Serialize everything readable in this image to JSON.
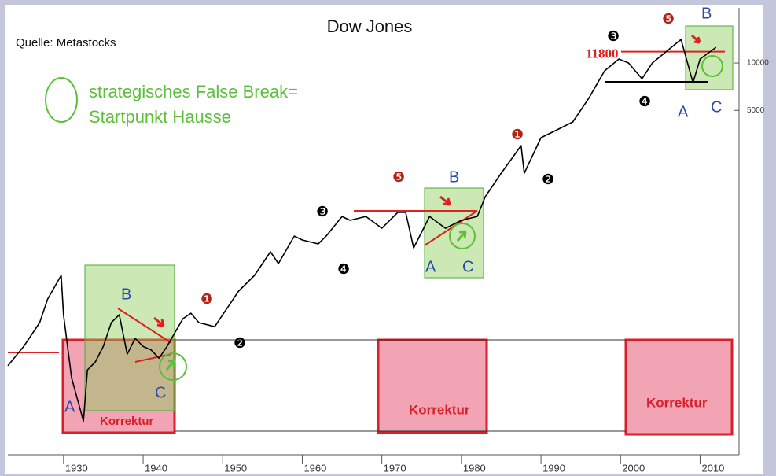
{
  "chart_data": {
    "type": "line",
    "title": "Dow Jones",
    "x": [
      1923,
      1925,
      1927,
      1928,
      1929.7,
      1930,
      1931,
      1932.5,
      1933,
      1934,
      1935,
      1936,
      1937,
      1938,
      1939,
      1940,
      1941,
      1942,
      1943,
      1945,
      1946,
      1947,
      1949,
      1950,
      1952,
      1954,
      1956,
      1957,
      1959,
      1960,
      1962,
      1963,
      1965,
      1966,
      1968,
      1970,
      1972,
      1973,
      1974,
      1976,
      1978,
      1980,
      1982,
      1983,
      1985,
      1987.5,
      1987.9,
      1990,
      1992,
      1994,
      1996,
      1998,
      1999.8,
      2001,
      2002.7,
      2004,
      2007.6,
      2009.1,
      2010,
      2012
    ],
    "values": [
      119,
      158,
      224,
      316,
      447,
      251,
      100,
      53,
      112,
      126,
      158,
      224,
      251,
      141,
      178,
      158,
      150,
      133,
      158,
      237,
      257,
      224,
      211,
      251,
      355,
      447,
      631,
      531,
      794,
      750,
      708,
      794,
      1059,
      1000,
      1059,
      891,
      1122,
      1122,
      668,
      1059,
      891,
      1000,
      1059,
      1413,
      1995,
      2985,
      1995,
      3350,
      3758,
      4217,
      5957,
      8913,
      10593,
      10000,
      7943,
      10000,
      14125,
      7499,
      10593,
      12589
    ],
    "color": "#000000",
    "xlim": [
      1923,
      2014.4
    ],
    "xticks": [
      1930,
      1940,
      1950,
      1960,
      1970,
      1980,
      1990,
      2000,
      2010
    ],
    "ylim": [
      35.5,
      22400
    ],
    "yticks": [
      5000,
      10000
    ],
    "log_y": true,
    "reference_lines": [
      {
        "value": 11800,
        "label": "11800"
      }
    ],
    "annotations": [
      "Quelle: Metastocks",
      "strategisches False Break=",
      "Startpunkt Hausse",
      "Korrektur",
      "Korrektur",
      "Korrektur",
      "A",
      "B",
      "C",
      "A",
      "B",
      "C",
      "A",
      "B",
      "C",
      "❶",
      "❷",
      "❸",
      "❹",
      "❺",
      "❶",
      "❷",
      "❸",
      "❹",
      "❺"
    ]
  }
}
